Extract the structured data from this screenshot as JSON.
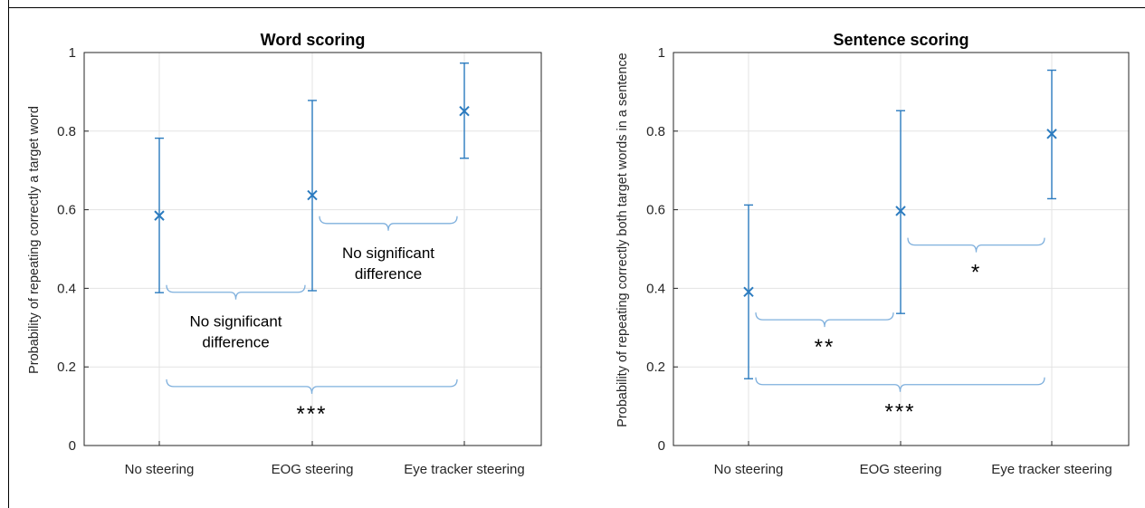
{
  "chart_data": [
    {
      "type": "errorbar",
      "title": "Word scoring",
      "xlabel": "",
      "ylabel": "Probability of repeating correctly a target word",
      "categories": [
        "No steering",
        "EOG steering",
        "Eye tracker steering"
      ],
      "y_ticks": [
        "0",
        "0.2",
        "0.4",
        "0.6",
        "0.8",
        "1"
      ],
      "ylim": [
        0,
        1
      ],
      "grid": true,
      "color": "#2b7bbf",
      "series": [
        {
          "values": [
            0.585,
            0.637,
            0.851
          ],
          "lower": [
            0.389,
            0.394,
            0.731
          ],
          "upper": [
            0.782,
            0.878,
            0.973
          ]
        }
      ],
      "annotations": [
        {
          "from": 0,
          "to": 1,
          "y": 0.39,
          "text": [
            "No significant",
            "difference"
          ],
          "style": "text"
        },
        {
          "from": 1,
          "to": 2,
          "y": 0.565,
          "text": [
            "No significant",
            "difference"
          ],
          "style": "text"
        },
        {
          "from": 0,
          "to": 2,
          "y": 0.15,
          "text": [
            "***"
          ],
          "style": "stars"
        }
      ]
    },
    {
      "type": "errorbar",
      "title": "Sentence scoring",
      "xlabel": "",
      "ylabel": "Probability of repeating correctly both target words in a sentence",
      "categories": [
        "No steering",
        "EOG steering",
        "Eye tracker steering"
      ],
      "y_ticks": [
        "0",
        "0.2",
        "0.4",
        "0.6",
        "0.8",
        "1"
      ],
      "ylim": [
        0,
        1
      ],
      "grid": true,
      "color": "#2b7bbf",
      "series": [
        {
          "values": [
            0.391,
            0.597,
            0.793
          ],
          "lower": [
            0.17,
            0.336,
            0.628
          ],
          "upper": [
            0.612,
            0.852,
            0.955
          ]
        }
      ],
      "annotations": [
        {
          "from": 0,
          "to": 1,
          "y": 0.32,
          "text": [
            "**"
          ],
          "style": "stars"
        },
        {
          "from": 1,
          "to": 2,
          "y": 0.51,
          "text": [
            "*"
          ],
          "style": "stars"
        },
        {
          "from": 0,
          "to": 2,
          "y": 0.155,
          "text": [
            "***"
          ],
          "style": "stars"
        }
      ]
    }
  ]
}
